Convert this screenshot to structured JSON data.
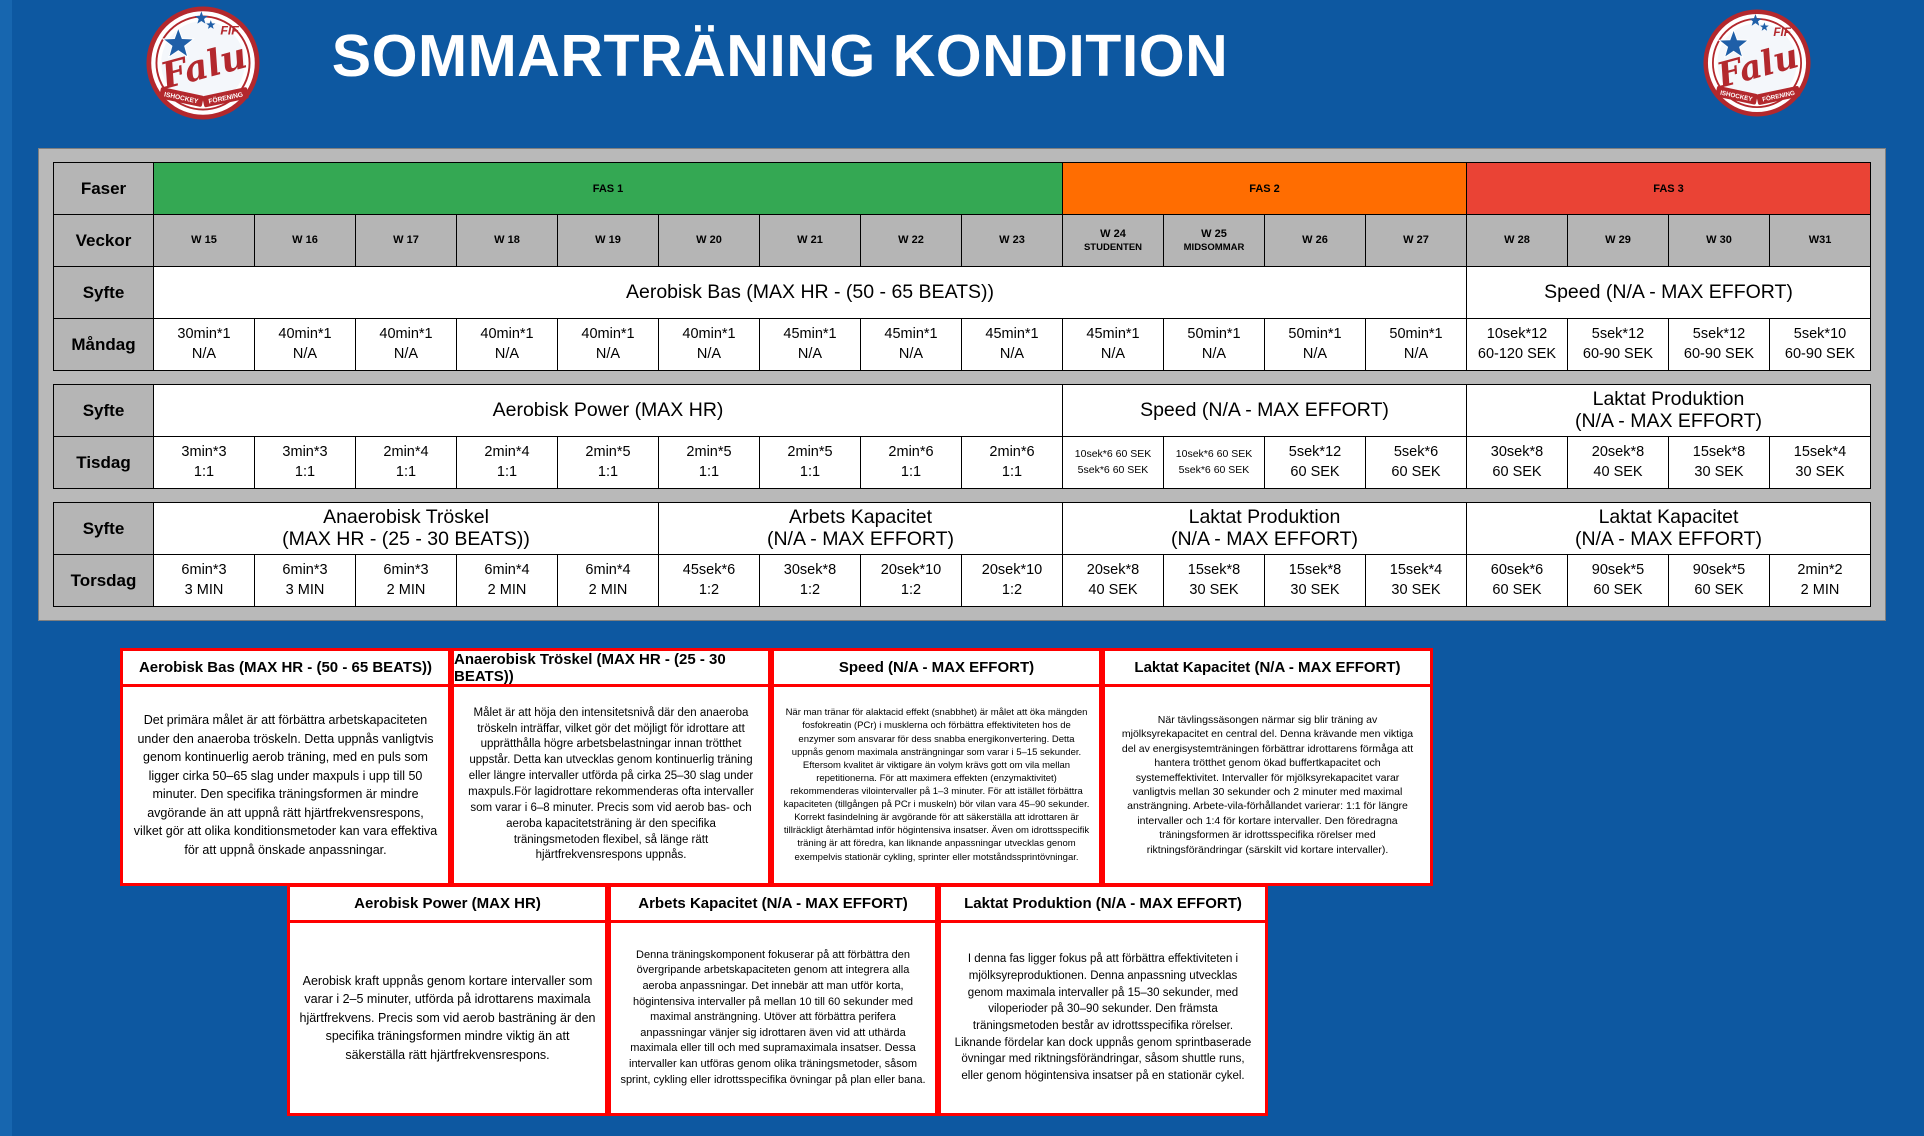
{
  "page": {
    "title": "SOMMARTRÄNING KONDITION"
  },
  "logo": {
    "fif": "FIF",
    "falu": "Falu",
    "ishockey": "ISHOCKEY",
    "forening": "FÖRENING"
  },
  "colors": {
    "phase1": "#34a853",
    "phase2": "#ff6d01",
    "phase3": "#ea4335",
    "box_border": "#ff0000",
    "header_blue": "#0d58a1"
  },
  "schedule": {
    "labels": {
      "faser": "Faser",
      "veckor": "Veckor",
      "syfte": "Syfte"
    },
    "phases": [
      {
        "label": "FAS 1",
        "span": 9,
        "color": "#34a853"
      },
      {
        "label": "FAS 2",
        "span": 4,
        "color": "#ff6d01"
      },
      {
        "label": "FAS 3",
        "span": 4,
        "color": "#ea4335"
      }
    ],
    "weeks": [
      {
        "label": "W 15"
      },
      {
        "label": "W 16"
      },
      {
        "label": "W 17"
      },
      {
        "label": "W 18"
      },
      {
        "label": "W 19"
      },
      {
        "label": "W 20"
      },
      {
        "label": "W 21"
      },
      {
        "label": "W 22"
      },
      {
        "label": "W 23"
      },
      {
        "label": "W 24",
        "note": "STUDENTEN"
      },
      {
        "label": "W 25",
        "note": "MIDSOMMAR"
      },
      {
        "label": "W 26"
      },
      {
        "label": "W 27"
      },
      {
        "label": "W 28"
      },
      {
        "label": "W 29"
      },
      {
        "label": "W 30"
      },
      {
        "label": "W31"
      }
    ],
    "blocks": [
      {
        "day": "Måndag",
        "purposes": [
          {
            "label": "Aerobisk Bas (MAX HR - (50 - 65 BEATS))",
            "span": 13
          },
          {
            "label": "Speed (N/A - MAX EFFORT)",
            "span": 4
          }
        ],
        "cells": [
          {
            "l1": "30min*1",
            "l2": "N/A"
          },
          {
            "l1": "40min*1",
            "l2": "N/A"
          },
          {
            "l1": "40min*1",
            "l2": "N/A"
          },
          {
            "l1": "40min*1",
            "l2": "N/A"
          },
          {
            "l1": "40min*1",
            "l2": "N/A"
          },
          {
            "l1": "40min*1",
            "l2": "N/A"
          },
          {
            "l1": "45min*1",
            "l2": "N/A"
          },
          {
            "l1": "45min*1",
            "l2": "N/A"
          },
          {
            "l1": "45min*1",
            "l2": "N/A"
          },
          {
            "l1": "45min*1",
            "l2": "N/A"
          },
          {
            "l1": "50min*1",
            "l2": "N/A"
          },
          {
            "l1": "50min*1",
            "l2": "N/A"
          },
          {
            "l1": "50min*1",
            "l2": "N/A"
          },
          {
            "l1": "10sek*12",
            "l2": "60-120 SEK"
          },
          {
            "l1": "5sek*12",
            "l2": "60-90 SEK"
          },
          {
            "l1": "5sek*12",
            "l2": "60-90 SEK"
          },
          {
            "l1": "5sek*10",
            "l2": "60-90 SEK"
          }
        ]
      },
      {
        "day": "Tisdag",
        "purposes": [
          {
            "label": "Aerobisk Power (MAX HR)",
            "span": 9
          },
          {
            "label": "Speed (N/A - MAX EFFORT)",
            "span": 4
          },
          {
            "label": "Laktat Produktion",
            "label2": "(N/A - MAX EFFORT)",
            "span": 4
          }
        ],
        "cells": [
          {
            "l1": "3min*3",
            "l2": "1:1"
          },
          {
            "l1": "3min*3",
            "l2": "1:1"
          },
          {
            "l1": "2min*4",
            "l2": "1:1"
          },
          {
            "l1": "2min*4",
            "l2": "1:1"
          },
          {
            "l1": "2min*5",
            "l2": "1:1"
          },
          {
            "l1": "2min*5",
            "l2": "1:1"
          },
          {
            "l1": "2min*5",
            "l2": "1:1"
          },
          {
            "l1": "2min*6",
            "l2": "1:1"
          },
          {
            "l1": "2min*6",
            "l2": "1:1"
          },
          {
            "l1": "10sek*6 60 SEK",
            "l2": "5sek*6 60 SEK",
            "small": true
          },
          {
            "l1": "10sek*6 60 SEK",
            "l2": "5sek*6 60 SEK",
            "small": true
          },
          {
            "l1": "5sek*12",
            "l2": "60 SEK"
          },
          {
            "l1": "5sek*6",
            "l2": "60 SEK"
          },
          {
            "l1": "30sek*8",
            "l2": "60 SEK"
          },
          {
            "l1": "20sek*8",
            "l2": "40 SEK"
          },
          {
            "l1": "15sek*8",
            "l2": "30 SEK"
          },
          {
            "l1": "15sek*4",
            "l2": "30 SEK"
          }
        ]
      },
      {
        "day": "Torsdag",
        "purposes": [
          {
            "label": "Anaerobisk Tröskel",
            "label2": "(MAX HR - (25 - 30 BEATS))",
            "span": 5
          },
          {
            "label": "Arbets Kapacitet",
            "label2": "(N/A - MAX EFFORT)",
            "span": 4
          },
          {
            "label": "Laktat Produktion",
            "label2": "(N/A - MAX EFFORT)",
            "span": 4
          },
          {
            "label": "Laktat Kapacitet",
            "label2": "(N/A - MAX EFFORT)",
            "span": 4
          }
        ],
        "cells": [
          {
            "l1": "6min*3",
            "l2": "3 MIN"
          },
          {
            "l1": "6min*3",
            "l2": "3 MIN"
          },
          {
            "l1": "6min*3",
            "l2": "2 MIN"
          },
          {
            "l1": "6min*4",
            "l2": "2 MIN"
          },
          {
            "l1": "6min*4",
            "l2": "2 MIN"
          },
          {
            "l1": "45sek*6",
            "l2": "1:2"
          },
          {
            "l1": "30sek*8",
            "l2": "1:2"
          },
          {
            "l1": "20sek*10",
            "l2": "1:2"
          },
          {
            "l1": "20sek*10",
            "l2": "1:2"
          },
          {
            "l1": "20sek*8",
            "l2": "40 SEK"
          },
          {
            "l1": "15sek*8",
            "l2": "30 SEK"
          },
          {
            "l1": "15sek*8",
            "l2": "30 SEK"
          },
          {
            "l1": "15sek*4",
            "l2": "30 SEK"
          },
          {
            "l1": "60sek*6",
            "l2": "60 SEK"
          },
          {
            "l1": "90sek*5",
            "l2": "60 SEK"
          },
          {
            "l1": "90sek*5",
            "l2": "60 SEK"
          },
          {
            "l1": "2min*2",
            "l2": "2 MIN"
          }
        ]
      }
    ]
  },
  "info_boxes": [
    {
      "title": "Aerobisk Bas (MAX HR - (50 - 65 BEATS))",
      "body": "Det primära målet är att förbättra arbetskapaciteten under den anaeroba tröskeln. Detta uppnås vanligtvis genom kontinuerlig aerob träning, med en puls som ligger cirka 50–65 slag under maxpuls i upp till 50 minuter. Den specifika träningsformen är mindre avgörande än att uppnå rätt hjärtfrekvensrespons, vilket gör att olika konditionsmetoder kan vara effektiva för att uppnå önskade anpassningar."
    },
    {
      "title": "Anaerobisk Tröskel (MAX HR - (25 - 30 BEATS))",
      "body": "Målet är att höja den intensitetsnivå där den anaeroba tröskeln inträffar, vilket gör det möjligt för idrottare att upprätthålla högre arbetsbelastningar innan trötthet uppstår. Detta kan utvecklas genom kontinuerlig träning eller längre intervaller utförda på cirka 25–30 slag under maxpuls.För lagidrottare rekommenderas ofta intervaller som varar i 6–8 minuter. Precis som vid aerob bas- och aeroba kapacitetsträning är den specifika träningsmetoden flexibel, så länge rätt hjärtfrekvensrespons uppnås."
    },
    {
      "title": "Speed (N/A - MAX EFFORT)",
      "body": "När man tränar för alaktacid effekt (snabbhet) är målet att öka mängden fosfokreatin (PCr) i musklerna och förbättra effektiviteten hos de enzymer som ansvarar för dess snabba energikonvertering. Detta uppnås genom maximala ansträngningar som varar i 5–15 sekunder. Eftersom kvalitet är viktigare än volym krävs gott om vila mellan repetitionerna. För att maximera effekten (enzymaktivitet) rekommenderas vilointervaller på 1–3 minuter. För att istället förbättra kapaciteten (tillgången på PCr i muskeln) bör vilan vara 45–90 sekunder. Korrekt fasindelning är avgörande för att säkerställa att idrottaren är tillräckligt återhämtad inför högintensiva insatser. Även om idrottsspecifik träning är att föredra, kan liknande anpassningar utvecklas genom exempelvis stationär cykling, sprinter eller motståndssprintövningar."
    },
    {
      "title": "Laktat Kapacitet (N/A - MAX EFFORT)",
      "body": "När tävlingssäsongen närmar sig blir träning av mjölksyrekapacitet en central del. Denna krävande men viktiga del av energisystemträningen förbättrar idrottarens förmåga att hantera trötthet genom ökad buffertkapacitet och systemeffektivitet. Intervaller för mjölksyrekapacitet varar vanligtvis mellan 30 sekunder och 2 minuter med maximal ansträngning. Arbete-vila-förhållandet varierar: 1:1 för längre intervaller och 1:4 för kortare intervaller. Den föredragna träningsformen är idrottsspecifika rörelser med riktningsförändringar (särskilt vid kortare intervaller)."
    },
    {
      "title": "Aerobisk Power (MAX HR)",
      "body": "Aerobisk kraft uppnås genom kortare intervaller som varar i 2–5 minuter, utförda på idrottarens maximala hjärtfrekvens. Precis som vid aerob basträning är den specifika träningsformen mindre viktig än att säkerställa rätt hjärtfrekvensrespons."
    },
    {
      "title": "Arbets Kapacitet (N/A - MAX EFFORT)",
      "body": "Denna träningskomponent fokuserar på att förbättra den övergripande arbetskapaciteten genom att integrera alla aeroba anpassningar. Det innebär att man utför korta, högintensiva intervaller på mellan 10 till 60 sekunder med maximal ansträngning. Utöver att förbättra perifera anpassningar vänjer sig idrottaren även vid att uthärda maximala eller till och med supramaximala insatser. Dessa intervaller kan utföras genom olika träningsmetoder, såsom sprint, cykling eller idrottsspecifika övningar på plan eller bana."
    },
    {
      "title": "Laktat Produktion (N/A - MAX EFFORT)",
      "body": "I denna fas ligger fokus på att förbättra effektiviteten i mjölksyreproduktionen. Denna anpassning utvecklas genom maximala intervaller på 15–30 sekunder, med viloperioder på 30–90 sekunder. Den främsta träningsmetoden består av idrottsspecifika rörelser. Liknande fördelar kan dock uppnås genom sprintbaserade övningar med riktningsförändringar, såsom shuttle runs, eller genom högintensiva insatser på en stationär cykel."
    }
  ]
}
